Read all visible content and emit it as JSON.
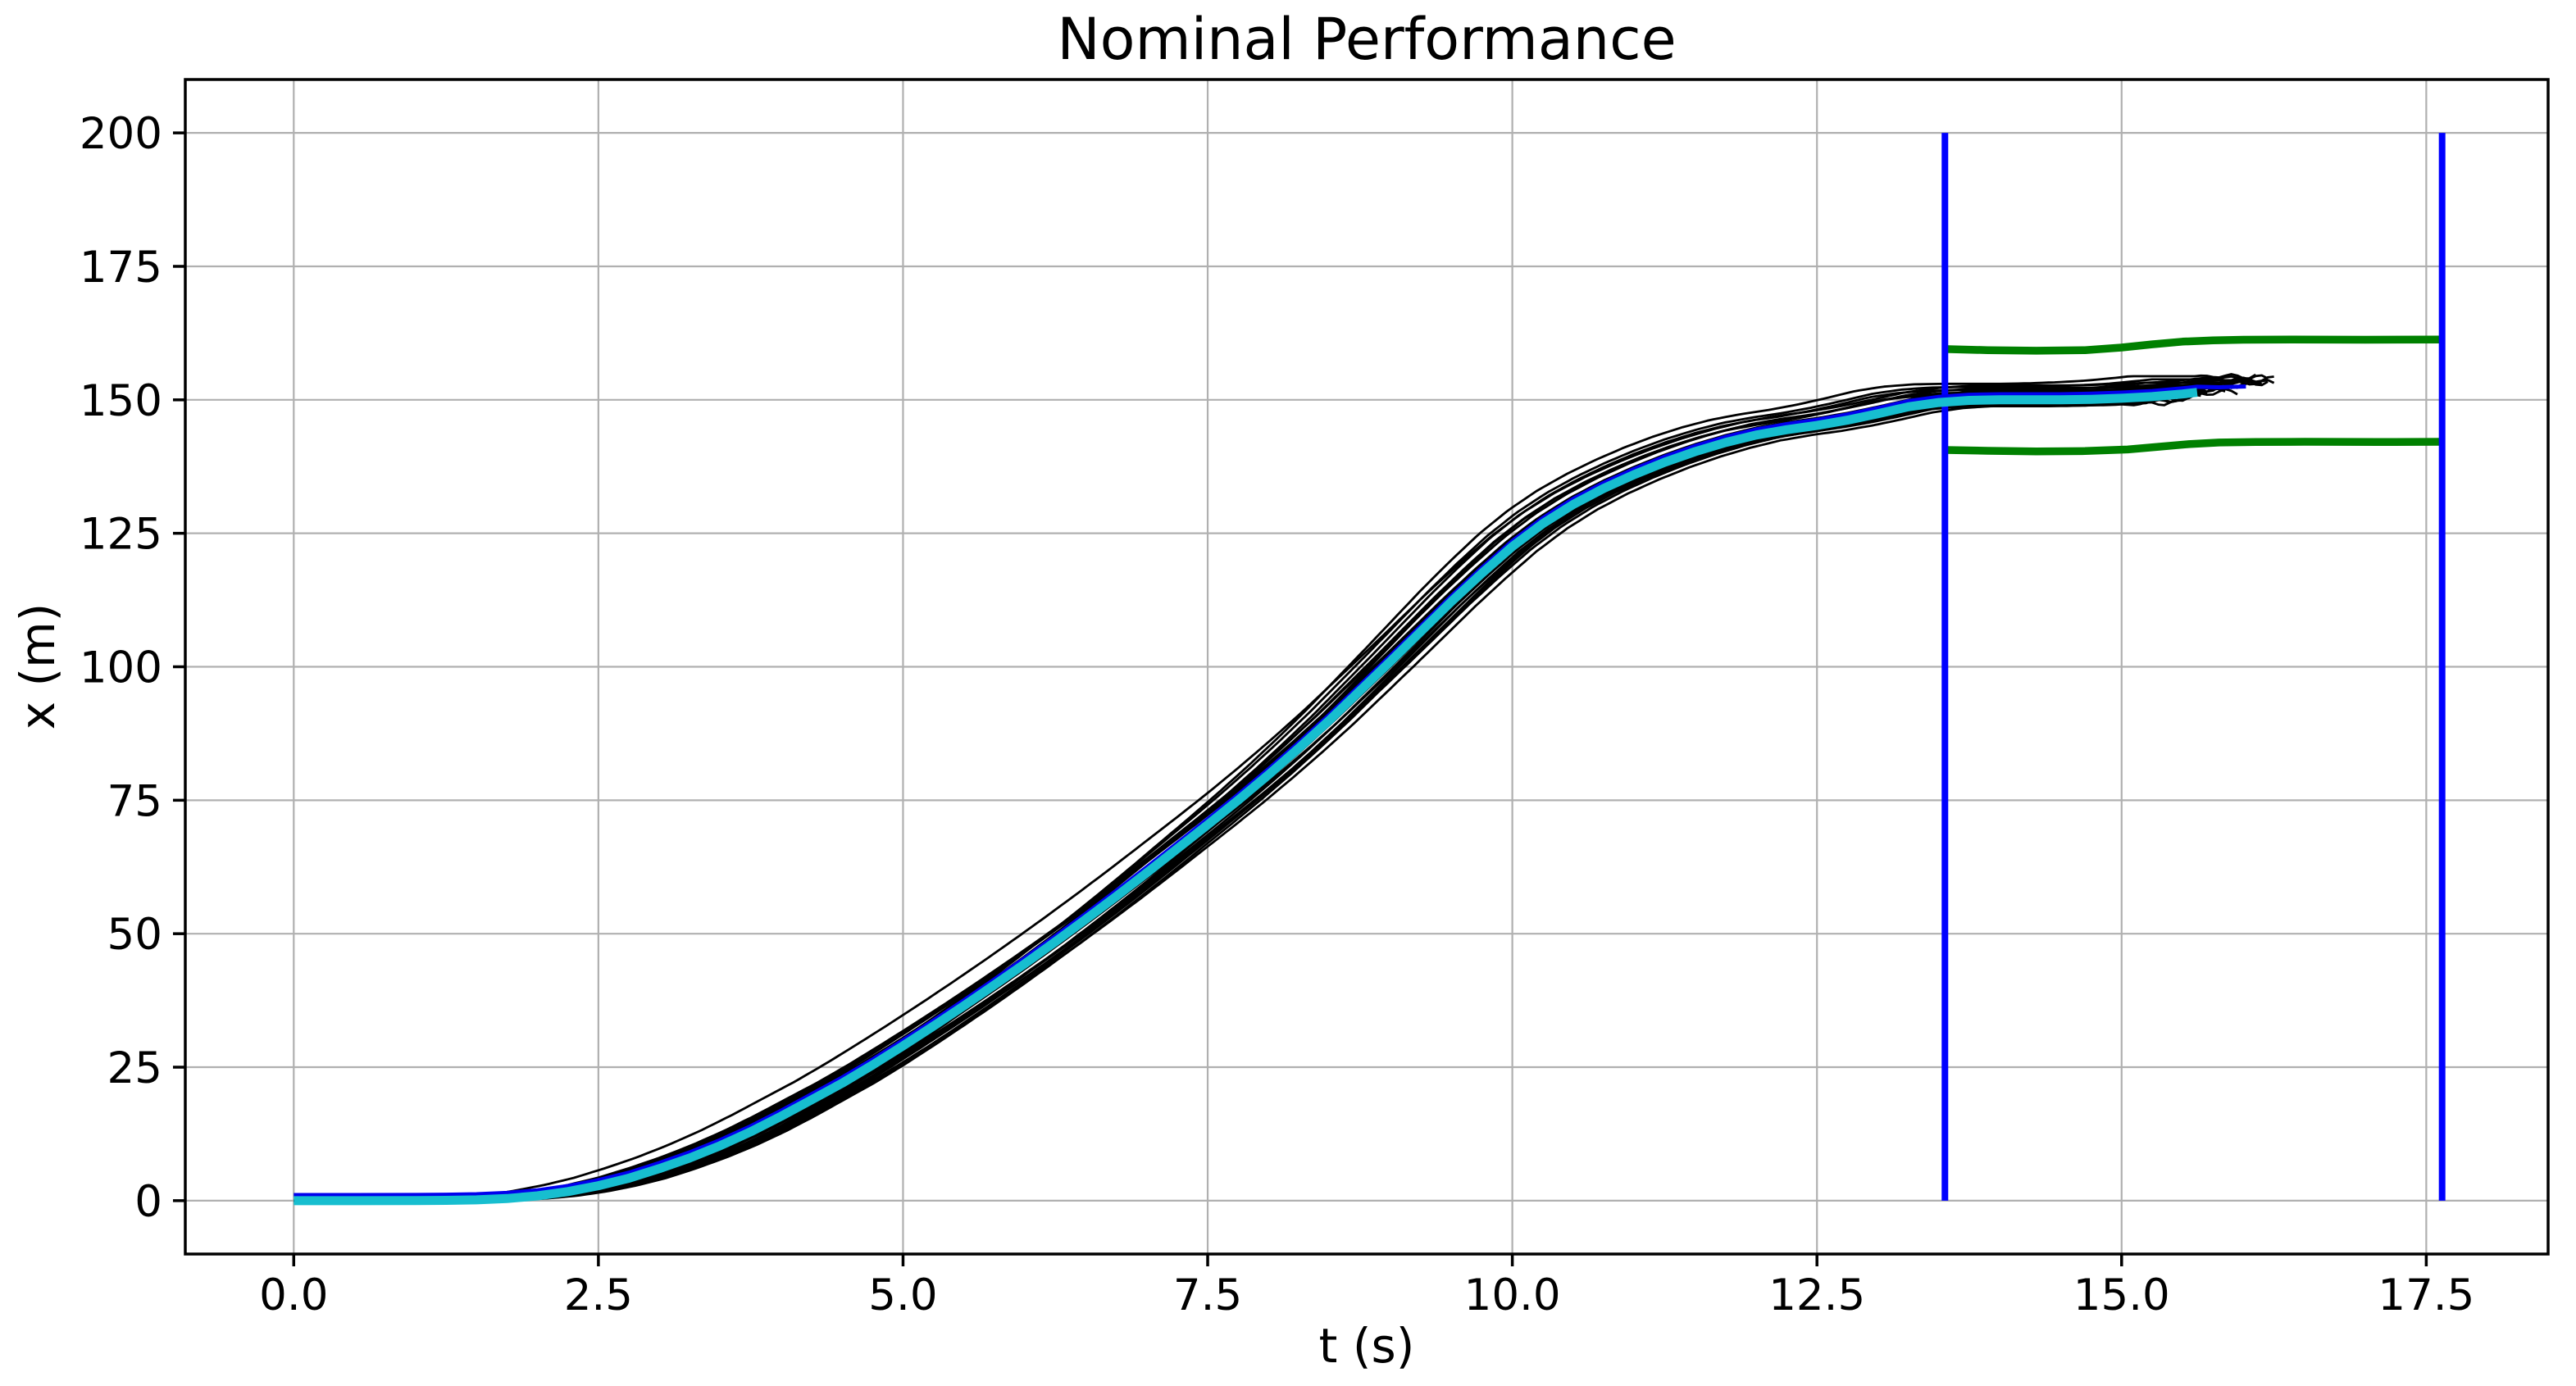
{
  "chart_data": {
    "type": "line",
    "title": "Nominal Performance",
    "xlabel": "t (s)",
    "ylabel": "x (m)",
    "grid": true,
    "legend": "none",
    "xlim": [
      -0.89,
      18.5
    ],
    "ylim": [
      -10,
      210
    ],
    "xticks": [
      0.0,
      2.5,
      5.0,
      7.5,
      10.0,
      12.5,
      15.0,
      17.5
    ],
    "xtick_labels": [
      "0.0",
      "2.5",
      "5.0",
      "7.5",
      "10.0",
      "12.5",
      "15.0",
      "17.5"
    ],
    "yticks": [
      0,
      25,
      50,
      75,
      100,
      125,
      150,
      175,
      200
    ],
    "ytick_labels": [
      "0",
      "25",
      "50",
      "75",
      "100",
      "125",
      "150",
      "175",
      "200"
    ],
    "colors": {
      "mean": "#17becf",
      "nominal": "#0000ee",
      "ensemble": "#000000",
      "bounds": "#008000",
      "window": "#0000ff",
      "gridline": "#b0b0b0",
      "spine": "#000000"
    },
    "series": [
      {
        "name": "mean-trajectory",
        "color_key": "mean",
        "width": 11,
        "x": [
          0,
          0.5,
          1.0,
          1.25,
          1.5,
          1.75,
          2.0,
          2.25,
          2.5,
          2.75,
          3.0,
          3.25,
          3.5,
          3.75,
          4.0,
          4.25,
          4.5,
          4.75,
          5.0,
          5.25,
          5.5,
          5.75,
          6.0,
          6.25,
          6.5,
          6.75,
          7.0,
          7.25,
          7.5,
          7.75,
          8.0,
          8.25,
          8.5,
          8.75,
          9.0,
          9.25,
          9.5,
          9.75,
          10.0,
          10.25,
          10.5,
          10.75,
          11.0,
          11.25,
          11.5,
          11.75,
          12.0,
          12.25,
          12.5,
          12.75,
          13.0,
          13.25,
          13.5,
          13.75,
          14.0,
          14.25,
          14.5,
          14.75,
          15.0,
          15.25,
          15.5,
          15.62
        ],
        "y": [
          0,
          0,
          0.02,
          0.06,
          0.15,
          0.4,
          0.9,
          1.7,
          2.8,
          4.2,
          6.0,
          8.0,
          10.3,
          12.9,
          15.8,
          18.9,
          22.0,
          25.4,
          29.0,
          32.7,
          36.5,
          40.4,
          44.4,
          48.5,
          52.7,
          57.0,
          61.4,
          65.9,
          70.4,
          75.0,
          79.8,
          84.8,
          90.0,
          95.5,
          101.0,
          106.6,
          112.2,
          117.5,
          122.5,
          126.8,
          130.4,
          133.4,
          136.0,
          138.3,
          140.3,
          142.0,
          143.4,
          144.4,
          145.2,
          146.2,
          147.4,
          148.7,
          149.5,
          149.9,
          150.0,
          150.0,
          150.0,
          150.1,
          150.3,
          150.6,
          151.1,
          151.4
        ]
      },
      {
        "name": "upper-bound",
        "color_key": "bounds",
        "width": 9.5,
        "x": [
          13.55,
          13.9,
          14.3,
          14.7,
          15.0,
          15.25,
          15.5,
          15.75,
          16.0,
          16.4,
          17.0,
          17.63
        ],
        "y": [
          159.5,
          159.3,
          159.2,
          159.3,
          159.8,
          160.4,
          160.9,
          161.15,
          161.25,
          161.3,
          161.25,
          161.3
        ]
      },
      {
        "name": "lower-bound",
        "color_key": "bounds",
        "width": 9.5,
        "x": [
          13.55,
          13.9,
          14.3,
          14.7,
          15.05,
          15.3,
          15.55,
          15.8,
          16.1,
          16.5,
          17.1,
          17.63
        ],
        "y": [
          140.6,
          140.45,
          140.35,
          140.4,
          140.7,
          141.2,
          141.7,
          142.0,
          142.1,
          142.15,
          142.1,
          142.15
        ]
      }
    ],
    "vlines": [
      {
        "name": "window-start",
        "x": 13.55,
        "y0": 0,
        "y1": 200,
        "color_key": "window",
        "width": 8
      },
      {
        "name": "window-end",
        "x": 17.63,
        "y0": 0,
        "y1": 200,
        "color_key": "window",
        "width": 8
      }
    ],
    "nominal_line": {
      "name": "nominal-trajectory",
      "color_key": "nominal",
      "width": 5,
      "offset_from_mean": 1.05,
      "t_end": 16.02,
      "tail_x": [
        15.8,
        16.02
      ],
      "tail_y": [
        152.35,
        152.5
      ]
    },
    "ensemble": {
      "name": "monte-carlo-trajectories",
      "color_key": "ensemble",
      "width": 2.8,
      "params_format": [
        "time_shift",
        "rate_scale",
        "amp_scale",
        "t_end",
        "wiggle_phase"
      ],
      "params": [
        [
          -0.22,
          -0.05,
          0.02,
          16.1,
          0.5
        ],
        [
          -0.18,
          -0.03,
          0.016,
          16.25,
          2.1
        ],
        [
          -0.15,
          -0.04,
          0.012,
          16.28,
          4.0
        ],
        [
          -0.12,
          -0.02,
          0.009,
          16.05,
          1.2
        ],
        [
          -0.1,
          -0.05,
          0.006,
          15.95,
          3.3
        ],
        [
          -0.08,
          0.01,
          0.014,
          16.15,
          5.1
        ],
        [
          -0.06,
          -0.01,
          0.004,
          15.8,
          0.8
        ],
        [
          -0.05,
          0.02,
          0.01,
          16.0,
          2.7
        ],
        [
          -0.04,
          -0.03,
          0.002,
          15.7,
          4.6
        ],
        [
          -0.03,
          0.03,
          0.007,
          15.9,
          1.9
        ],
        [
          -0.02,
          -0.02,
          0.0,
          15.6,
          3.8
        ],
        [
          -0.01,
          0.04,
          0.012,
          16.2,
          0.3
        ],
        [
          0.0,
          -0.04,
          -0.002,
          15.55,
          2.4
        ],
        [
          0.01,
          0.02,
          0.005,
          15.85,
          4.9
        ],
        [
          0.02,
          -0.01,
          -0.004,
          15.65,
          1.5
        ],
        [
          0.03,
          0.03,
          0.008,
          16.08,
          3.0
        ],
        [
          0.05,
          -0.02,
          -0.006,
          15.5,
          5.4
        ],
        [
          0.06,
          0.01,
          0.003,
          15.75,
          0.9
        ],
        [
          0.08,
          -0.03,
          -0.008,
          15.58,
          2.8
        ],
        [
          0.1,
          0.02,
          0.001,
          15.95,
          4.2
        ],
        [
          0.12,
          -0.01,
          -0.005,
          15.52,
          1.1
        ],
        [
          0.15,
          0.01,
          -0.003,
          15.68,
          3.5
        ],
        [
          0.18,
          -0.02,
          0.006,
          15.88,
          5.7
        ],
        [
          0.2,
          0.0,
          -0.007,
          15.48,
          2.2
        ],
        [
          0.22,
          0.02,
          0.015,
          16.18,
          0.6
        ],
        [
          -0.2,
          0.04,
          0.018,
          16.22,
          3.9
        ]
      ]
    }
  }
}
